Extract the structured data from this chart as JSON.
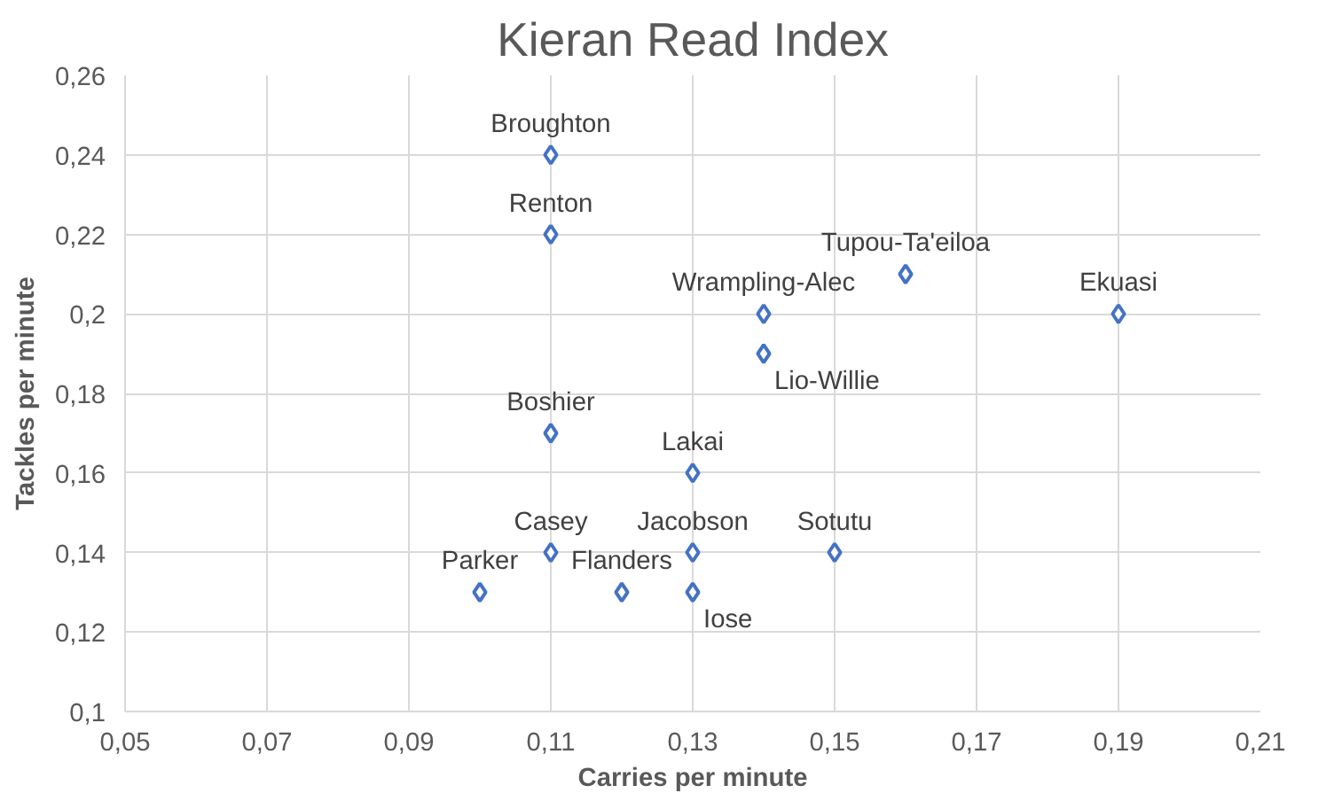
{
  "chart_data": {
    "type": "scatter",
    "title": "Kieran Read Index",
    "xlabel": "Carries per minute",
    "ylabel": "Tackles per minute",
    "x": [
      0.11,
      0.11,
      0.16,
      0.19,
      0.14,
      0.14,
      0.11,
      0.13,
      0.11,
      0.13,
      0.15,
      0.1,
      0.12,
      0.13
    ],
    "series": [
      {
        "color": "#4472c4",
        "values": [
          0.24,
          0.22,
          0.21,
          0.2,
          0.2,
          0.19,
          0.17,
          0.16,
          0.14,
          0.14,
          0.14,
          0.13,
          0.13,
          0.13
        ]
      }
    ],
    "marker": "diamond",
    "grid": true,
    "xlim": [
      0.05,
      0.21
    ],
    "ylim": [
      0.1,
      0.26
    ],
    "xticks": [
      {
        "value": 0.05,
        "label": "0,05"
      },
      {
        "value": 0.07,
        "label": "0,07"
      },
      {
        "value": 0.09,
        "label": "0,09"
      },
      {
        "value": 0.11,
        "label": "0,11"
      },
      {
        "value": 0.13,
        "label": "0,13"
      },
      {
        "value": 0.15,
        "label": "0,15"
      },
      {
        "value": 0.17,
        "label": "0,17"
      },
      {
        "value": 0.19,
        "label": "0,19"
      },
      {
        "value": 0.21,
        "label": "0,21"
      }
    ],
    "yticks": [
      {
        "value": 0.1,
        "label": "0,1"
      },
      {
        "value": 0.12,
        "label": "0,12"
      },
      {
        "value": 0.14,
        "label": "0,14"
      },
      {
        "value": 0.16,
        "label": "0,16"
      },
      {
        "value": 0.18,
        "label": "0,18"
      },
      {
        "value": 0.2,
        "label": "0,2"
      },
      {
        "value": 0.22,
        "label": "0,22"
      },
      {
        "value": 0.24,
        "label": "0,24"
      },
      {
        "value": 0.26,
        "label": "0,26"
      }
    ],
    "annotations": [
      {
        "text": "Broughton",
        "x": 0.11,
        "y": 0.24
      },
      {
        "text": "Renton",
        "x": 0.11,
        "y": 0.22
      },
      {
        "text": "Tupou-Ta'eiloa",
        "x": 0.16,
        "y": 0.21
      },
      {
        "text": "Ekuasi",
        "x": 0.19,
        "y": 0.2
      },
      {
        "text": "Wrampling-Alec",
        "x": 0.14,
        "y": 0.2
      },
      {
        "text": "Lio-Willie",
        "x": 0.14,
        "y": 0.19
      },
      {
        "text": "Boshier",
        "x": 0.11,
        "y": 0.17
      },
      {
        "text": "Lakai",
        "x": 0.13,
        "y": 0.16
      },
      {
        "text": "Casey",
        "x": 0.11,
        "y": 0.14
      },
      {
        "text": "Jacobson",
        "x": 0.13,
        "y": 0.14
      },
      {
        "text": "Sotutu",
        "x": 0.15,
        "y": 0.14
      },
      {
        "text": "Parker",
        "x": 0.1,
        "y": 0.13
      },
      {
        "text": "Flanders",
        "x": 0.12,
        "y": 0.13
      },
      {
        "text": "Iose",
        "x": 0.13,
        "y": 0.13
      }
    ]
  }
}
